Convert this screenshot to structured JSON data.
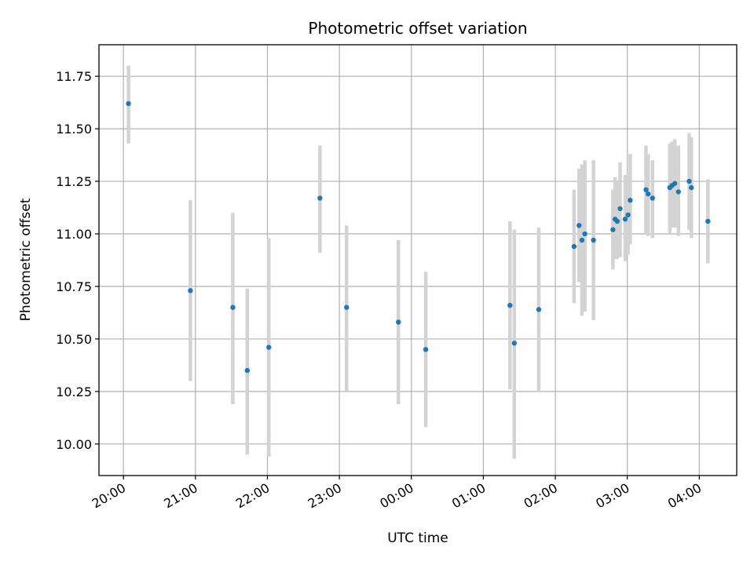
{
  "chart_data": {
    "type": "scatter",
    "title": "Photometric offset variation",
    "xlabel": "UTC time",
    "ylabel": "Photometric offset",
    "x_unit": "hours since 20:00 UTC",
    "xlim": [
      -0.34,
      8.52
    ],
    "ylim": [
      9.85,
      11.9
    ],
    "grid": true,
    "x_ticks": [
      {
        "value": 0,
        "label": "20:00"
      },
      {
        "value": 1,
        "label": "21:00"
      },
      {
        "value": 2,
        "label": "22:00"
      },
      {
        "value": 3,
        "label": "23:00"
      },
      {
        "value": 4,
        "label": "00:00"
      },
      {
        "value": 5,
        "label": "01:00"
      },
      {
        "value": 6,
        "label": "02:00"
      },
      {
        "value": 7,
        "label": "03:00"
      },
      {
        "value": 8,
        "label": "04:00"
      }
    ],
    "y_ticks": [
      {
        "value": 10.0,
        "label": "10.00"
      },
      {
        "value": 10.25,
        "label": "10.25"
      },
      {
        "value": 10.5,
        "label": "10.50"
      },
      {
        "value": 10.75,
        "label": "10.75"
      },
      {
        "value": 11.0,
        "label": "11.00"
      },
      {
        "value": 11.25,
        "label": "11.25"
      },
      {
        "value": 11.5,
        "label": "11.50"
      },
      {
        "value": 11.75,
        "label": "11.75"
      }
    ],
    "points": [
      {
        "x": 0.07,
        "y": 11.62,
        "lo": 11.43,
        "hi": 11.8
      },
      {
        "x": 0.93,
        "y": 10.73,
        "lo": 10.3,
        "hi": 11.16
      },
      {
        "x": 1.52,
        "y": 10.65,
        "lo": 10.19,
        "hi": 11.1
      },
      {
        "x": 1.72,
        "y": 10.35,
        "lo": 9.95,
        "hi": 10.74
      },
      {
        "x": 2.02,
        "y": 10.46,
        "lo": 9.94,
        "hi": 10.98
      },
      {
        "x": 2.73,
        "y": 11.17,
        "lo": 10.91,
        "hi": 11.42
      },
      {
        "x": 3.1,
        "y": 10.65,
        "lo": 10.25,
        "hi": 11.04
      },
      {
        "x": 3.82,
        "y": 10.58,
        "lo": 10.19,
        "hi": 10.97
      },
      {
        "x": 4.2,
        "y": 10.45,
        "lo": 10.08,
        "hi": 10.82
      },
      {
        "x": 5.37,
        "y": 10.66,
        "lo": 10.26,
        "hi": 11.06
      },
      {
        "x": 5.43,
        "y": 10.48,
        "lo": 9.93,
        "hi": 11.02
      },
      {
        "x": 5.77,
        "y": 10.64,
        "lo": 10.25,
        "hi": 11.03
      },
      {
        "x": 6.26,
        "y": 10.94,
        "lo": 10.67,
        "hi": 11.21
      },
      {
        "x": 6.33,
        "y": 11.04,
        "lo": 10.77,
        "hi": 11.31
      },
      {
        "x": 6.37,
        "y": 10.97,
        "lo": 10.61,
        "hi": 11.33
      },
      {
        "x": 6.41,
        "y": 11.0,
        "lo": 10.63,
        "hi": 11.35
      },
      {
        "x": 6.53,
        "y": 10.97,
        "lo": 10.59,
        "hi": 11.35
      },
      {
        "x": 6.8,
        "y": 11.02,
        "lo": 10.83,
        "hi": 11.21
      },
      {
        "x": 6.83,
        "y": 11.07,
        "lo": 10.88,
        "hi": 11.27
      },
      {
        "x": 6.86,
        "y": 11.06,
        "lo": 10.88,
        "hi": 11.25
      },
      {
        "x": 6.9,
        "y": 11.12,
        "lo": 10.89,
        "hi": 11.34
      },
      {
        "x": 6.97,
        "y": 11.07,
        "lo": 10.87,
        "hi": 11.28
      },
      {
        "x": 7.01,
        "y": 11.09,
        "lo": 10.9,
        "hi": 11.29
      },
      {
        "x": 7.04,
        "y": 11.16,
        "lo": 10.95,
        "hi": 11.38
      },
      {
        "x": 7.26,
        "y": 11.21,
        "lo": 11.0,
        "hi": 11.42
      },
      {
        "x": 7.29,
        "y": 11.19,
        "lo": 10.99,
        "hi": 11.38
      },
      {
        "x": 7.35,
        "y": 11.17,
        "lo": 10.98,
        "hi": 11.35
      },
      {
        "x": 7.59,
        "y": 11.22,
        "lo": 11.0,
        "hi": 11.43
      },
      {
        "x": 7.62,
        "y": 11.23,
        "lo": 11.03,
        "hi": 11.44
      },
      {
        "x": 7.66,
        "y": 11.24,
        "lo": 11.03,
        "hi": 11.45
      },
      {
        "x": 7.71,
        "y": 11.2,
        "lo": 10.99,
        "hi": 11.42
      },
      {
        "x": 7.86,
        "y": 11.25,
        "lo": 11.02,
        "hi": 11.48
      },
      {
        "x": 7.89,
        "y": 11.22,
        "lo": 10.98,
        "hi": 11.46
      },
      {
        "x": 8.12,
        "y": 11.06,
        "lo": 10.86,
        "hi": 11.26
      }
    ],
    "colors": {
      "point": "#1f77b4",
      "errorbar": "#d3d3d3",
      "grid": "#b0b0b0"
    }
  }
}
